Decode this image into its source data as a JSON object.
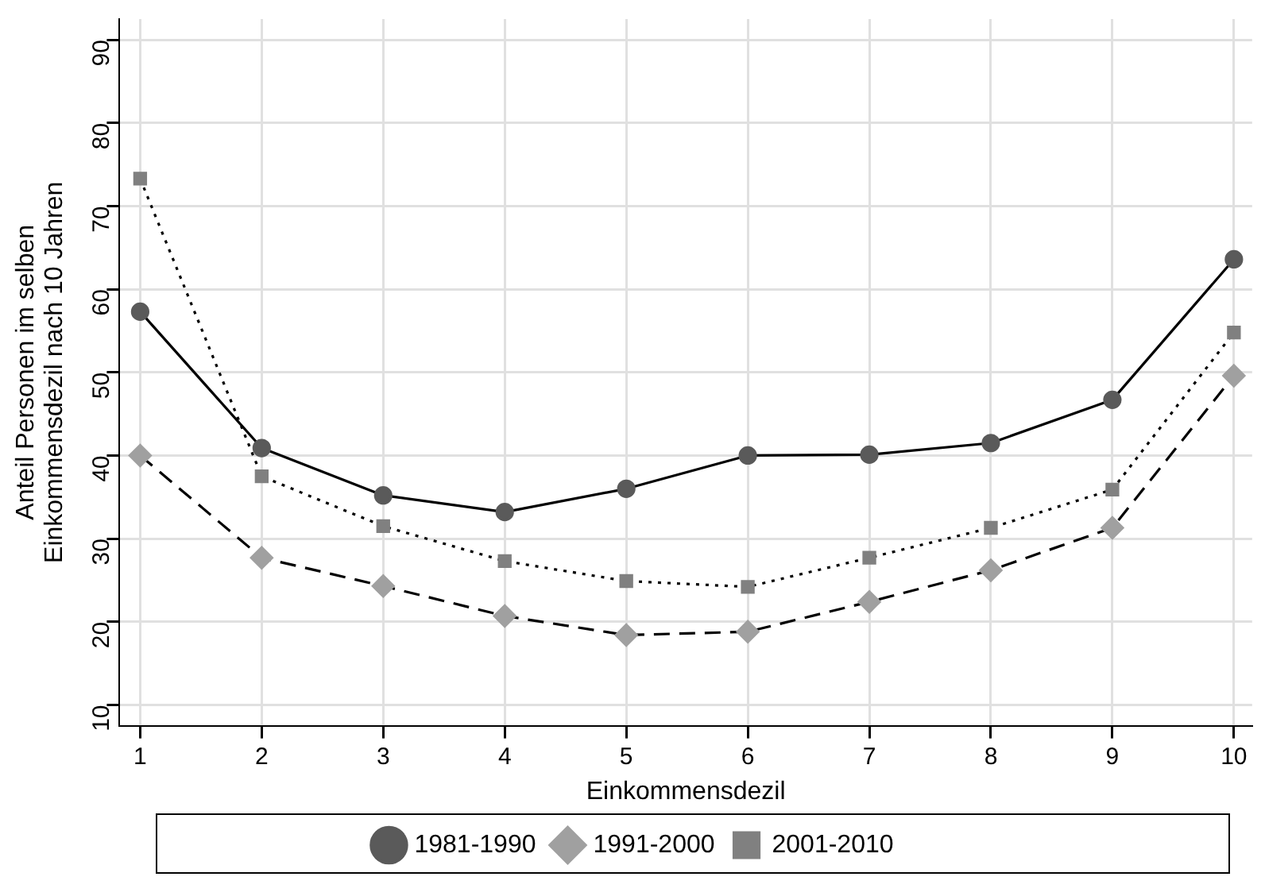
{
  "chart_data": {
    "type": "line",
    "xlabel": "Einkommensdezil",
    "ylabel": "Anteil Personen im selben\nEinkommensdezil nach 10 Jahren",
    "x": [
      1,
      2,
      3,
      4,
      5,
      6,
      7,
      8,
      9,
      10
    ],
    "xlim": [
      0.83,
      10.15
    ],
    "xticks": [
      1,
      2,
      3,
      4,
      5,
      6,
      7,
      8,
      9,
      10
    ],
    "ylim": [
      7.5,
      92.5
    ],
    "yticks": [
      10,
      20,
      30,
      40,
      50,
      60,
      70,
      80,
      90
    ],
    "grid": true,
    "legend": "bottom",
    "series": [
      {
        "name": "1981-1990",
        "color": "#5a5a5a",
        "marker": "circle",
        "line_style": "solid",
        "values": [
          57.3,
          40.9,
          35.2,
          33.2,
          36.0,
          40.0,
          40.1,
          41.5,
          46.7,
          63.6
        ]
      },
      {
        "name": "1991-2000",
        "color": "#a0a0a0",
        "marker": "diamond",
        "line_style": "dashed",
        "values": [
          40.0,
          27.7,
          24.3,
          20.7,
          18.4,
          18.8,
          22.4,
          26.2,
          31.3,
          49.6
        ]
      },
      {
        "name": "2001-2010",
        "color": "#808080",
        "marker": "square",
        "line_style": "dotted",
        "values": [
          73.3,
          37.5,
          31.5,
          27.3,
          24.9,
          24.2,
          27.7,
          31.3,
          35.9,
          54.8
        ]
      }
    ]
  }
}
